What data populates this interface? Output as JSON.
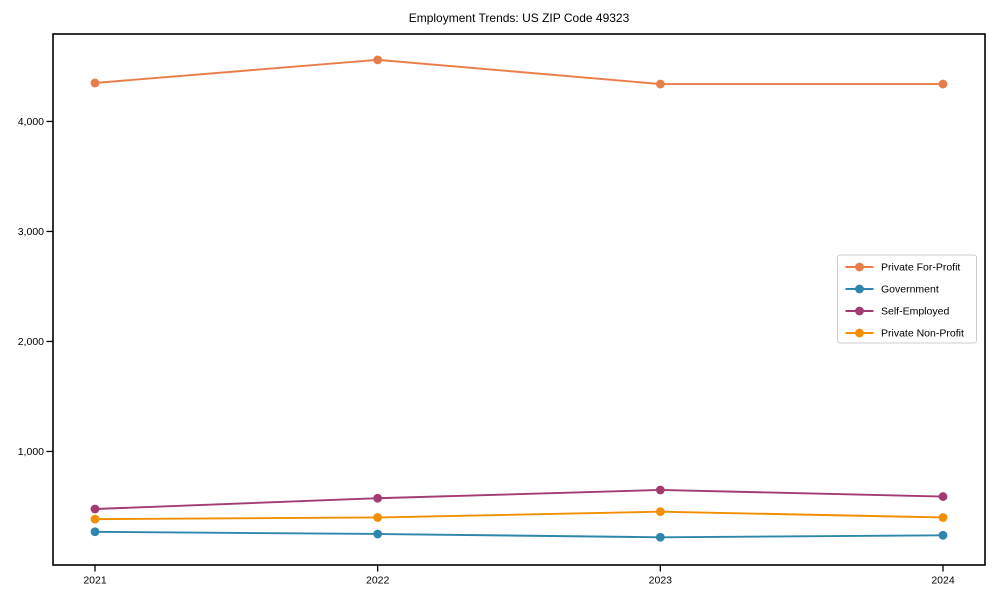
{
  "figure": {
    "background": "#ffffff",
    "axis_color": "#000000"
  },
  "chart_data": {
    "type": "line",
    "title": "Employment Trends: US ZIP Code 49323",
    "xlabel": "",
    "ylabel": "",
    "x": [
      2021,
      2022,
      2023,
      2024
    ],
    "x_tick_labels": [
      "2021",
      "2022",
      "2023",
      "2024"
    ],
    "y_ticks": [
      1000,
      2000,
      3000,
      4000
    ],
    "y_tick_labels": [
      "1,000",
      "2,000",
      "3,000",
      "4,000"
    ],
    "ylim": [
      -32,
      4795
    ],
    "grid": false,
    "marker": "circle",
    "legend_position": "center right",
    "series": [
      {
        "name": "Private For-Profit",
        "color": "#e87d4a",
        "values": [
          4350,
          4560,
          4340,
          4340
        ]
      },
      {
        "name": "Government",
        "color": "#2e86ab",
        "values": [
          270,
          250,
          220,
          238
        ]
      },
      {
        "name": "Self-Employed",
        "color": "#a23b72",
        "values": [
          477,
          575,
          650,
          590
        ]
      },
      {
        "name": "Private Non-Profit",
        "color": "#f18f01",
        "values": [
          385,
          400,
          453,
          400
        ]
      }
    ]
  }
}
